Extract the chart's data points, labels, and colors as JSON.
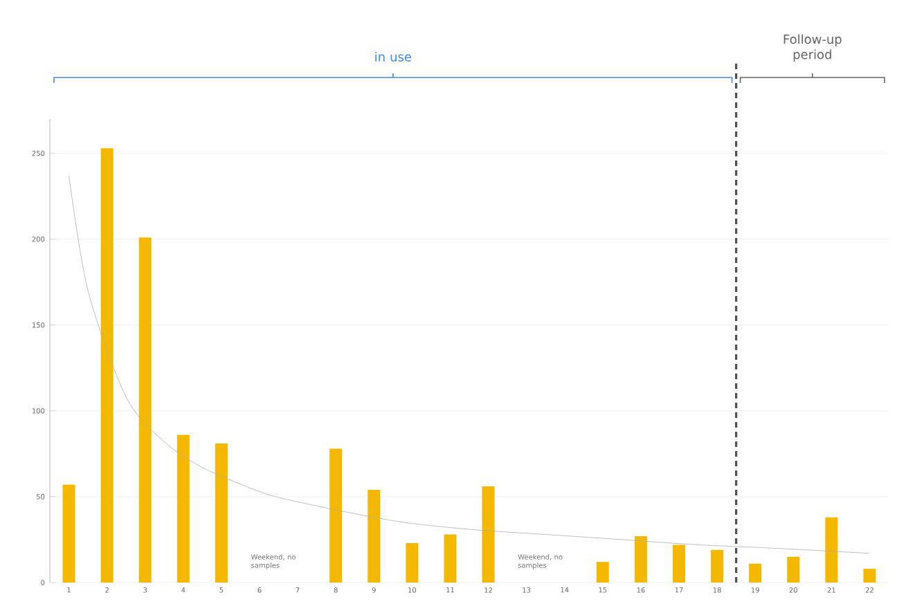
{
  "chart_data": {
    "type": "bar",
    "x": [
      1,
      2,
      3,
      4,
      5,
      6,
      7,
      8,
      9,
      10,
      11,
      12,
      13,
      14,
      15,
      16,
      17,
      18,
      19,
      20,
      21,
      22
    ],
    "series": [
      {
        "color": "#f5b800",
        "values": [
          57,
          253,
          201,
          86,
          81,
          null,
          null,
          78,
          54,
          23,
          28,
          56,
          null,
          null,
          12,
          27,
          22,
          19,
          11,
          15,
          38,
          8
        ]
      },
      {
        "type": "line",
        "color": "#b0b0b0",
        "x": [
          1,
          1.5,
          2.5,
          3.5,
          4.5,
          6,
          7,
          9.5,
          11.5,
          13.5,
          15.5,
          17.5,
          19.5,
          22
        ],
        "values": [
          237,
          170,
          108,
          82,
          67,
          53,
          47,
          36,
          31,
          28,
          25,
          22,
          20,
          17
        ]
      }
    ],
    "xlim": [
      0.5,
      22.5
    ],
    "xticks": [
      1,
      2,
      3,
      4,
      5,
      6,
      7,
      8,
      9,
      10,
      11,
      12,
      13,
      14,
      15,
      16,
      17,
      18,
      19,
      20,
      21,
      22
    ],
    "ylim": [
      0,
      270
    ],
    "yticks": [
      0,
      50,
      100,
      150,
      200,
      250
    ],
    "grid": "y",
    "ref_lines": [
      {
        "axis": "x",
        "value": 18.5,
        "line_style": "dashed",
        "color": "#505050"
      }
    ],
    "annotations": [
      "in use",
      "Follow-up period",
      "Weekend, no samples",
      "Weekend, no samples"
    ]
  }
}
